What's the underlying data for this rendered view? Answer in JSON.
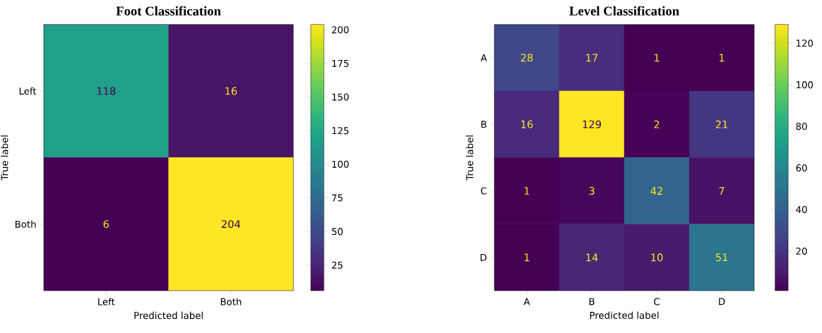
{
  "chart_data": [
    {
      "type": "heatmap",
      "title": "Foot Classification",
      "xlabel": "Predicted label",
      "ylabel": "True label",
      "categories": [
        "Left",
        "Both"
      ],
      "y_categories": [
        "Left",
        "Both"
      ],
      "cells": [
        [
          118,
          16
        ],
        [
          6,
          204
        ]
      ],
      "clim": [
        6,
        204
      ],
      "cticks": [
        25,
        50,
        75,
        100,
        125,
        150,
        175,
        200
      ],
      "data_labels": true
    },
    {
      "type": "heatmap",
      "title": "Level Classification",
      "xlabel": "Predicted label",
      "ylabel": "True label",
      "categories": [
        "A",
        "B",
        "C",
        "D"
      ],
      "y_categories": [
        "A",
        "B",
        "C",
        "D"
      ],
      "cells": [
        [
          28,
          17,
          1,
          1
        ],
        [
          16,
          129,
          2,
          21
        ],
        [
          1,
          3,
          42,
          7
        ],
        [
          1,
          14,
          10,
          51
        ]
      ],
      "clim": [
        1,
        129
      ],
      "cticks": [
        20,
        40,
        60,
        80,
        100,
        120
      ],
      "data_labels": true
    }
  ]
}
